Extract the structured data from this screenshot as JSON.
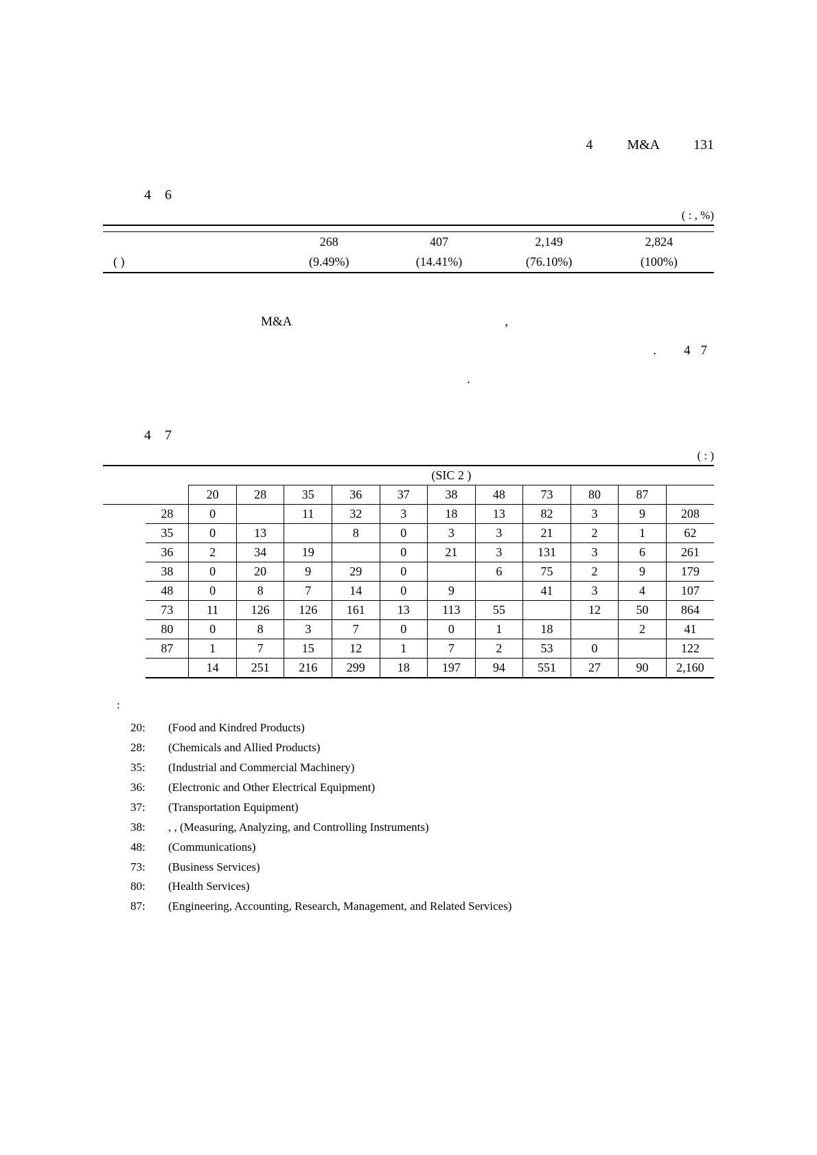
{
  "header": {
    "num": "4",
    "title": "M&A",
    "page": "131"
  },
  "table1": {
    "label_prefix": "4",
    "label_num": "6",
    "unit": "(      :       , %)",
    "row1": {
      "label": "",
      "c1": "",
      "c2": "",
      "c3": "",
      "c4": ""
    },
    "row2": {
      "label": "",
      "c1": "268",
      "c2": "407",
      "c3": "2,149",
      "c4": "2,824"
    },
    "row3": {
      "label": "(      )",
      "c1": "(9.49%)",
      "c2": "(14.41%)",
      "c3": "(76.10%)",
      "c4": "(100%)"
    }
  },
  "para": {
    "l1_a": "M&A",
    "l1_b": ",",
    "l2_a": ".",
    "l2_b": "4",
    "l2_c": "7",
    "l3": "."
  },
  "table2": {
    "label_prefix": "4",
    "label_num": "7",
    "unit": "(      :      )",
    "group_header": "(SIC 2      )",
    "col_headers": [
      "20",
      "28",
      "35",
      "36",
      "37",
      "38",
      "48",
      "73",
      "80",
      "87",
      ""
    ],
    "rows": [
      {
        "label": "28",
        "cells": [
          "0",
          "",
          "11",
          "32",
          "3",
          "18",
          "13",
          "82",
          "3",
          "9",
          "208"
        ]
      },
      {
        "label": "35",
        "cells": [
          "0",
          "13",
          "",
          "8",
          "0",
          "3",
          "3",
          "21",
          "2",
          "1",
          "62"
        ]
      },
      {
        "label": "36",
        "cells": [
          "2",
          "34",
          "19",
          "",
          "0",
          "21",
          "3",
          "131",
          "3",
          "6",
          "261"
        ]
      },
      {
        "label": "38",
        "cells": [
          "0",
          "20",
          "9",
          "29",
          "0",
          "",
          "6",
          "75",
          "2",
          "9",
          "179"
        ]
      },
      {
        "label": "48",
        "cells": [
          "0",
          "8",
          "7",
          "14",
          "0",
          "9",
          "",
          "41",
          "3",
          "4",
          "107"
        ]
      },
      {
        "label": "73",
        "cells": [
          "11",
          "126",
          "126",
          "161",
          "13",
          "113",
          "55",
          "",
          "12",
          "50",
          "864"
        ]
      },
      {
        "label": "80",
        "cells": [
          "0",
          "8",
          "3",
          "7",
          "0",
          "0",
          "1",
          "18",
          "",
          "2",
          "41"
        ]
      },
      {
        "label": "87",
        "cells": [
          "1",
          "7",
          "15",
          "12",
          "1",
          "7",
          "2",
          "53",
          "0",
          "",
          "122"
        ]
      }
    ],
    "total": {
      "label": "",
      "cells": [
        "14",
        "251",
        "216",
        "299",
        "18",
        "197",
        "94",
        "551",
        "27",
        "90",
        "2,160"
      ]
    }
  },
  "notes": {
    "lead": ":",
    "items": [
      {
        "code": "20:",
        "text": "(Food and Kindred Products)"
      },
      {
        "code": "28:",
        "text": "(Chemicals and Allied Products)"
      },
      {
        "code": "35:",
        "text": "(Industrial and Commercial Machinery)"
      },
      {
        "code": "36:",
        "text": "(Electronic and Other Electrical Equipment)"
      },
      {
        "code": "37:",
        "text": "(Transportation Equipment)"
      },
      {
        "code": "38:",
        "text": ",       ,               (Measuring, Analyzing, and Controlling Instruments)"
      },
      {
        "code": "48:",
        "text": "(Communications)"
      },
      {
        "code": "73:",
        "text": "(Business Services)"
      },
      {
        "code": "80:",
        "text": "(Health Services)"
      },
      {
        "code": "87:",
        "text": "(Engineering, Accounting, Research, Management, and Related Services)"
      }
    ]
  }
}
